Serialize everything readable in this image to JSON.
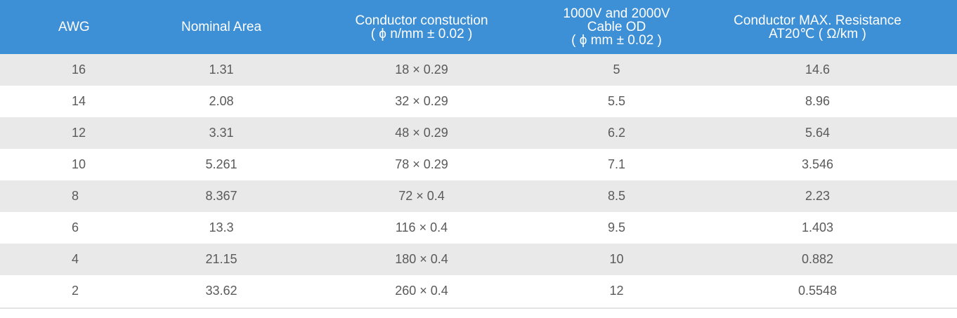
{
  "table": {
    "headers": [
      [
        "AWG"
      ],
      [
        "Nominal Area"
      ],
      [
        "Conductor constuction",
        "( ϕ n/mm ± 0.02 )"
      ],
      [
        "1000V and 2000V",
        "Cable OD",
        "( ϕ mm ± 0.02 )"
      ],
      [
        "Conductor MAX. Resistance",
        "AT20℃ ( Ω/km )"
      ]
    ],
    "rows": [
      [
        "16",
        "1.31",
        "18 × 0.29",
        "5",
        "14.6"
      ],
      [
        "14",
        "2.08",
        "32 × 0.29",
        "5.5",
        "8.96"
      ],
      [
        "12",
        "3.31",
        "48 × 0.29",
        "6.2",
        "5.64"
      ],
      [
        "10",
        "5.261",
        "78 × 0.29",
        "7.1",
        "3.546"
      ],
      [
        "8",
        "8.367",
        "72 × 0.4",
        "8.5",
        "2.23"
      ],
      [
        "6",
        "13.3",
        "116 × 0.4",
        "9.5",
        "1.403"
      ],
      [
        "4",
        "21.15",
        "180 × 0.4",
        "10",
        "0.882"
      ],
      [
        "2",
        "33.62",
        "260 × 0.4",
        "12",
        "0.5548"
      ]
    ]
  },
  "colors": {
    "header_bg": "#3d8fd6",
    "header_text": "#ffffff",
    "stripe_bg": "#e9e9e9",
    "cell_text": "#5a5a5a"
  }
}
